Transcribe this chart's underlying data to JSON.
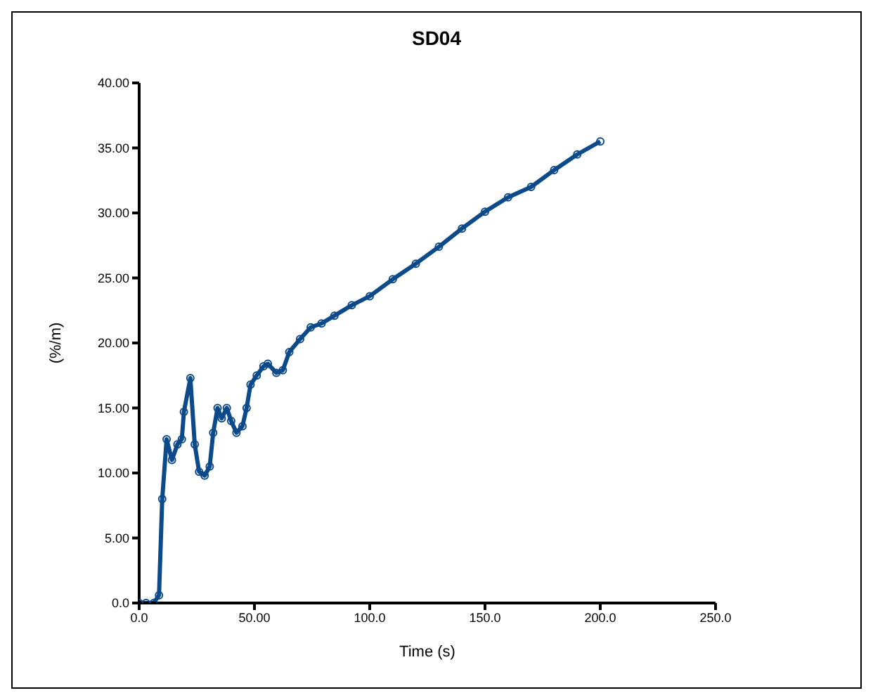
{
  "chart_data": {
    "type": "line",
    "title": "SD04",
    "xlabel": "Time (s)",
    "ylabel": "(%/m)",
    "x": [
      0,
      3,
      6.3,
      8.6,
      10,
      11.9,
      14.2,
      16.6,
      18.5,
      19.4,
      22.2,
      24.1,
      26,
      28.4,
      30.6,
      32.1,
      34,
      35.8,
      38,
      39.9,
      42.2,
      44.8,
      46.6,
      48.3,
      51,
      53.9,
      55.8,
      59.5,
      62.3,
      65.1,
      69.8,
      74.4,
      79.1,
      84.7,
      92.2,
      100,
      110,
      120,
      130,
      140,
      150,
      160,
      170,
      180,
      190,
      200
    ],
    "series": [
      {
        "color": "#0d4a8a",
        "values": [
          0,
          0,
          0,
          0.6,
          8.0,
          12.6,
          11,
          12.2,
          12.6,
          14.7,
          17.3,
          12.2,
          10.1,
          9.8,
          10.5,
          13.1,
          15.0,
          14.2,
          15.0,
          14.0,
          13.1,
          13.6,
          15.0,
          16.8,
          17.5,
          18.2,
          18.4,
          17.7,
          17.9,
          19.3,
          20.3,
          21.2,
          21.5,
          22.1,
          22.9,
          23.6,
          24.9,
          26.1,
          27.4,
          28.8,
          30.1,
          31.2,
          32.0,
          33.3,
          34.5,
          35.5
        ]
      }
    ],
    "xlim": [
      0,
      250
    ],
    "xticks": [
      {
        "value": 0,
        "label": "0.0"
      },
      {
        "value": 50,
        "label": "50.00"
      },
      {
        "value": 100,
        "label": "100.0"
      },
      {
        "value": 150,
        "label": "150.0"
      },
      {
        "value": 200,
        "label": "200.0"
      },
      {
        "value": 250,
        "label": "250.0"
      }
    ],
    "ylim": [
      0,
      40
    ],
    "yticks": [
      {
        "value": 0,
        "label": "0.0"
      },
      {
        "value": 5,
        "label": "5.00"
      },
      {
        "value": 10,
        "label": "10.00"
      },
      {
        "value": 15,
        "label": "15.00"
      },
      {
        "value": 20,
        "label": "20.00"
      },
      {
        "value": 25,
        "label": "25.00"
      },
      {
        "value": 30,
        "label": "30.00"
      },
      {
        "value": 35,
        "label": "35.00"
      },
      {
        "value": 40,
        "label": "40.00"
      }
    ],
    "grid": false,
    "marker": "circle",
    "line_style": "solid"
  }
}
